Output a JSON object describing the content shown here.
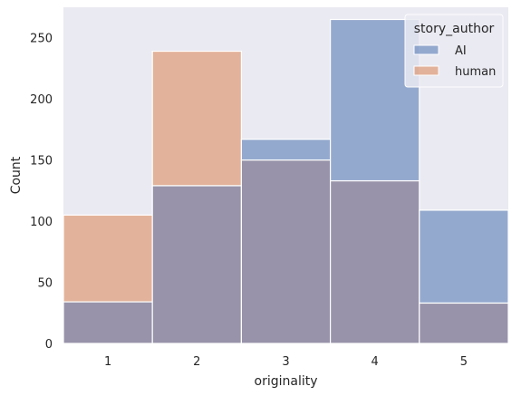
{
  "chart_data": {
    "type": "bar",
    "x": [
      1,
      2,
      3,
      4,
      5
    ],
    "xlabel": "originality",
    "ylabel": "Count",
    "ylim": [
      0,
      275
    ],
    "yticks": [
      0,
      50,
      100,
      150,
      200,
      250
    ],
    "grid": false,
    "legend": {
      "title": "story_author",
      "placement": "top-right"
    },
    "series": [
      {
        "name": "AI",
        "values": [
          34,
          129,
          167,
          265,
          109
        ],
        "color": "#4c72b0"
      },
      {
        "name": "human",
        "values": [
          105,
          239,
          150,
          133,
          33
        ],
        "color": "#dd8452"
      }
    ],
    "overlap_color": "#9893aa",
    "background_color": "#eaeaf2"
  }
}
